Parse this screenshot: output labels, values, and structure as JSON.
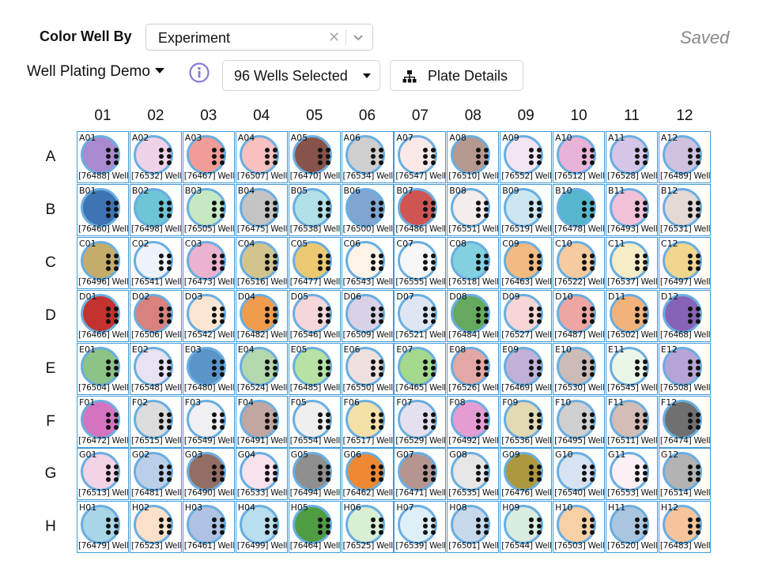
{
  "toolbar": {
    "color_by_label": "Color Well By",
    "color_by_value": "Experiment",
    "clear_glyph": "✕",
    "saved_label": "Saved",
    "plate_name": "Well Plating Demo",
    "wells_selected_label": "96 Wells Selected",
    "plate_details_label": "Plate Details",
    "icons": [
      "chevron-down-icon",
      "clear-icon",
      "info-icon",
      "caret-down-icon",
      "hierarchy-icon"
    ]
  },
  "plate": {
    "columns": [
      "01",
      "02",
      "03",
      "04",
      "05",
      "06",
      "07",
      "08",
      "09",
      "10",
      "11",
      "12"
    ],
    "rows": [
      "A",
      "B",
      "C",
      "D",
      "E",
      "F",
      "G",
      "H"
    ],
    "well_suffix": "Well",
    "wells": [
      {
        "label": "A01",
        "id": "[76488]",
        "color": "#a98ad0"
      },
      {
        "label": "A02",
        "id": "[76532]",
        "color": "#f0d2e8"
      },
      {
        "label": "A03",
        "id": "[76467]",
        "color": "#f19c98"
      },
      {
        "label": "A04",
        "id": "[76507]",
        "color": "#f6c1c0"
      },
      {
        "label": "A05",
        "id": "[76470]",
        "color": "#87534a"
      },
      {
        "label": "A06",
        "id": "[76534]",
        "color": "#cfcfcf"
      },
      {
        "label": "A07",
        "id": "[76547]",
        "color": "#fbe9e8"
      },
      {
        "label": "A08",
        "id": "[76510]",
        "color": "#b59890"
      },
      {
        "label": "A09",
        "id": "[76552]",
        "color": "#f4e5f3"
      },
      {
        "label": "A10",
        "id": "[76512]",
        "color": "#e9b3d8"
      },
      {
        "label": "A11",
        "id": "[76528]",
        "color": "#d5c6e8"
      },
      {
        "label": "A12",
        "id": "[76489]",
        "color": "#cec2e0"
      },
      {
        "label": "B01",
        "id": "[76460]",
        "color": "#3e73b4"
      },
      {
        "label": "B02",
        "id": "[76498]",
        "color": "#6cc6d6"
      },
      {
        "label": "B03",
        "id": "[76505]",
        "color": "#c6e9c3"
      },
      {
        "label": "B04",
        "id": "[76475]",
        "color": "#c4c4c4"
      },
      {
        "label": "B05",
        "id": "[76538]",
        "color": "#b1e0e9"
      },
      {
        "label": "B06",
        "id": "[76500]",
        "color": "#7fa5d0"
      },
      {
        "label": "B07",
        "id": "[76486]",
        "color": "#cf5553"
      },
      {
        "label": "B08",
        "id": "[76551]",
        "color": "#f5ecec"
      },
      {
        "label": "B09",
        "id": "[76519]",
        "color": "#cde7f1"
      },
      {
        "label": "B10",
        "id": "[76478]",
        "color": "#56b6cc"
      },
      {
        "label": "B11",
        "id": "[76493]",
        "color": "#f0c1d9"
      },
      {
        "label": "B12",
        "id": "[76531]",
        "color": "#e3d9d5"
      },
      {
        "label": "C01",
        "id": "[76496]",
        "color": "#c4ac6b"
      },
      {
        "label": "C02",
        "id": "[76541]",
        "color": "#eef3fb"
      },
      {
        "label": "C03",
        "id": "[76473]",
        "color": "#ebb3d0"
      },
      {
        "label": "C04",
        "id": "[76516]",
        "color": "#d3c48e"
      },
      {
        "label": "C05",
        "id": "[76477]",
        "color": "#ecc971"
      },
      {
        "label": "C06",
        "id": "[76543]",
        "color": "#fdf3e7"
      },
      {
        "label": "C07",
        "id": "[76555]",
        "color": "#f6f6f6"
      },
      {
        "label": "C08",
        "id": "[76518]",
        "color": "#83d0e0"
      },
      {
        "label": "C09",
        "id": "[76463]",
        "color": "#f3bb80"
      },
      {
        "label": "C10",
        "id": "[76522]",
        "color": "#f7cba0"
      },
      {
        "label": "C11",
        "id": "[76537]",
        "color": "#f7ecc8"
      },
      {
        "label": "C12",
        "id": "[76497]",
        "color": "#f0d58c"
      },
      {
        "label": "D01",
        "id": "[76466]",
        "color": "#c3322e"
      },
      {
        "label": "D02",
        "id": "[76506]",
        "color": "#d9817c"
      },
      {
        "label": "D03",
        "id": "[76542]",
        "color": "#fbe6d3"
      },
      {
        "label": "D04",
        "id": "[76482]",
        "color": "#f09c4e"
      },
      {
        "label": "D05",
        "id": "[76546]",
        "color": "#f4d6db"
      },
      {
        "label": "D06",
        "id": "[76509]",
        "color": "#d9d2e6"
      },
      {
        "label": "D07",
        "id": "[76521]",
        "color": "#dee6f3"
      },
      {
        "label": "D08",
        "id": "[76484]",
        "color": "#64a95d"
      },
      {
        "label": "D09",
        "id": "[76527]",
        "color": "#f6d6d6"
      },
      {
        "label": "D10",
        "id": "[76487]",
        "color": "#eea6a2"
      },
      {
        "label": "D11",
        "id": "[76502]",
        "color": "#f2b37a"
      },
      {
        "label": "D12",
        "id": "[76468]",
        "color": "#8763b7"
      },
      {
        "label": "E01",
        "id": "[76504]",
        "color": "#8cc386"
      },
      {
        "label": "E02",
        "id": "[76548]",
        "color": "#e8e2f2"
      },
      {
        "label": "E03",
        "id": "[76480]",
        "color": "#5b94c9"
      },
      {
        "label": "E04",
        "id": "[76524]",
        "color": "#b3d8ad"
      },
      {
        "label": "E05",
        "id": "[76485]",
        "color": "#b6e3a3"
      },
      {
        "label": "E06",
        "id": "[76550]",
        "color": "#ede0df"
      },
      {
        "label": "E07",
        "id": "[76465]",
        "color": "#a4d88c"
      },
      {
        "label": "E08",
        "id": "[76526]",
        "color": "#e3a7a5"
      },
      {
        "label": "E09",
        "id": "[76469]",
        "color": "#c1b1d8"
      },
      {
        "label": "E10",
        "id": "[76530]",
        "color": "#ccbbb6"
      },
      {
        "label": "E11",
        "id": "[76545]",
        "color": "#eaf6e8"
      },
      {
        "label": "E12",
        "id": "[76508]",
        "color": "#b6a4d6"
      },
      {
        "label": "F01",
        "id": "[76472]",
        "color": "#d474c1"
      },
      {
        "label": "F02",
        "id": "[76515]",
        "color": "#dcdcdc"
      },
      {
        "label": "F03",
        "id": "[76549]",
        "color": "#f0eff4"
      },
      {
        "label": "F04",
        "id": "[76491]",
        "color": "#c1a6a1"
      },
      {
        "label": "F05",
        "id": "[76554]",
        "color": "#efefef"
      },
      {
        "label": "F06",
        "id": "[76517]",
        "color": "#f4e1a9"
      },
      {
        "label": "F07",
        "id": "[76529]",
        "color": "#e5e0ef"
      },
      {
        "label": "F08",
        "id": "[76492]",
        "color": "#e49dd3"
      },
      {
        "label": "F09",
        "id": "[76536]",
        "color": "#e3d9b3"
      },
      {
        "label": "F10",
        "id": "[76495]",
        "color": "#d0d0d0"
      },
      {
        "label": "F11",
        "id": "[76511]",
        "color": "#d3bdb6"
      },
      {
        "label": "F12",
        "id": "[76474]",
        "color": "#707070"
      },
      {
        "label": "G01",
        "id": "[76513]",
        "color": "#f2d4e6"
      },
      {
        "label": "G02",
        "id": "[76481]",
        "color": "#bccfe9"
      },
      {
        "label": "G03",
        "id": "[76490]",
        "color": "#936e65"
      },
      {
        "label": "G04",
        "id": "[76533]",
        "color": "#f7e2ed"
      },
      {
        "label": "G05",
        "id": "[76494]",
        "color": "#8f8f8f"
      },
      {
        "label": "G06",
        "id": "[76462]",
        "color": "#ef8832"
      },
      {
        "label": "G07",
        "id": "[76471]",
        "color": "#b4958f"
      },
      {
        "label": "G08",
        "id": "[76535]",
        "color": "#e6e6e6"
      },
      {
        "label": "G09",
        "id": "[76476]",
        "color": "#ad983f"
      },
      {
        "label": "G10",
        "id": "[76540]",
        "color": "#d8e3f1"
      },
      {
        "label": "G11",
        "id": "[76553]",
        "color": "#faf0f5"
      },
      {
        "label": "G12",
        "id": "[76514]",
        "color": "#b3b3b3"
      },
      {
        "label": "H01",
        "id": "[76479]",
        "color": "#a8d6e7"
      },
      {
        "label": "H02",
        "id": "[76523]",
        "color": "#fbe1cc"
      },
      {
        "label": "H03",
        "id": "[76461]",
        "color": "#afc2e4"
      },
      {
        "label": "H04",
        "id": "[76499]",
        "color": "#b9def0"
      },
      {
        "label": "H05",
        "id": "[76464]",
        "color": "#4f9c42"
      },
      {
        "label": "H06",
        "id": "[76525]",
        "color": "#d8efd3"
      },
      {
        "label": "H07",
        "id": "[76539]",
        "color": "#deeff7"
      },
      {
        "label": "H08",
        "id": "[76501]",
        "color": "#c6d8ec"
      },
      {
        "label": "H09",
        "id": "[76544]",
        "color": "#d9ece0"
      },
      {
        "label": "H10",
        "id": "[76503]",
        "color": "#f8d0a6"
      },
      {
        "label": "H11",
        "id": "[76520]",
        "color": "#a9c5df"
      },
      {
        "label": "H12",
        "id": "[76483]",
        "color": "#f6c49a"
      }
    ]
  }
}
